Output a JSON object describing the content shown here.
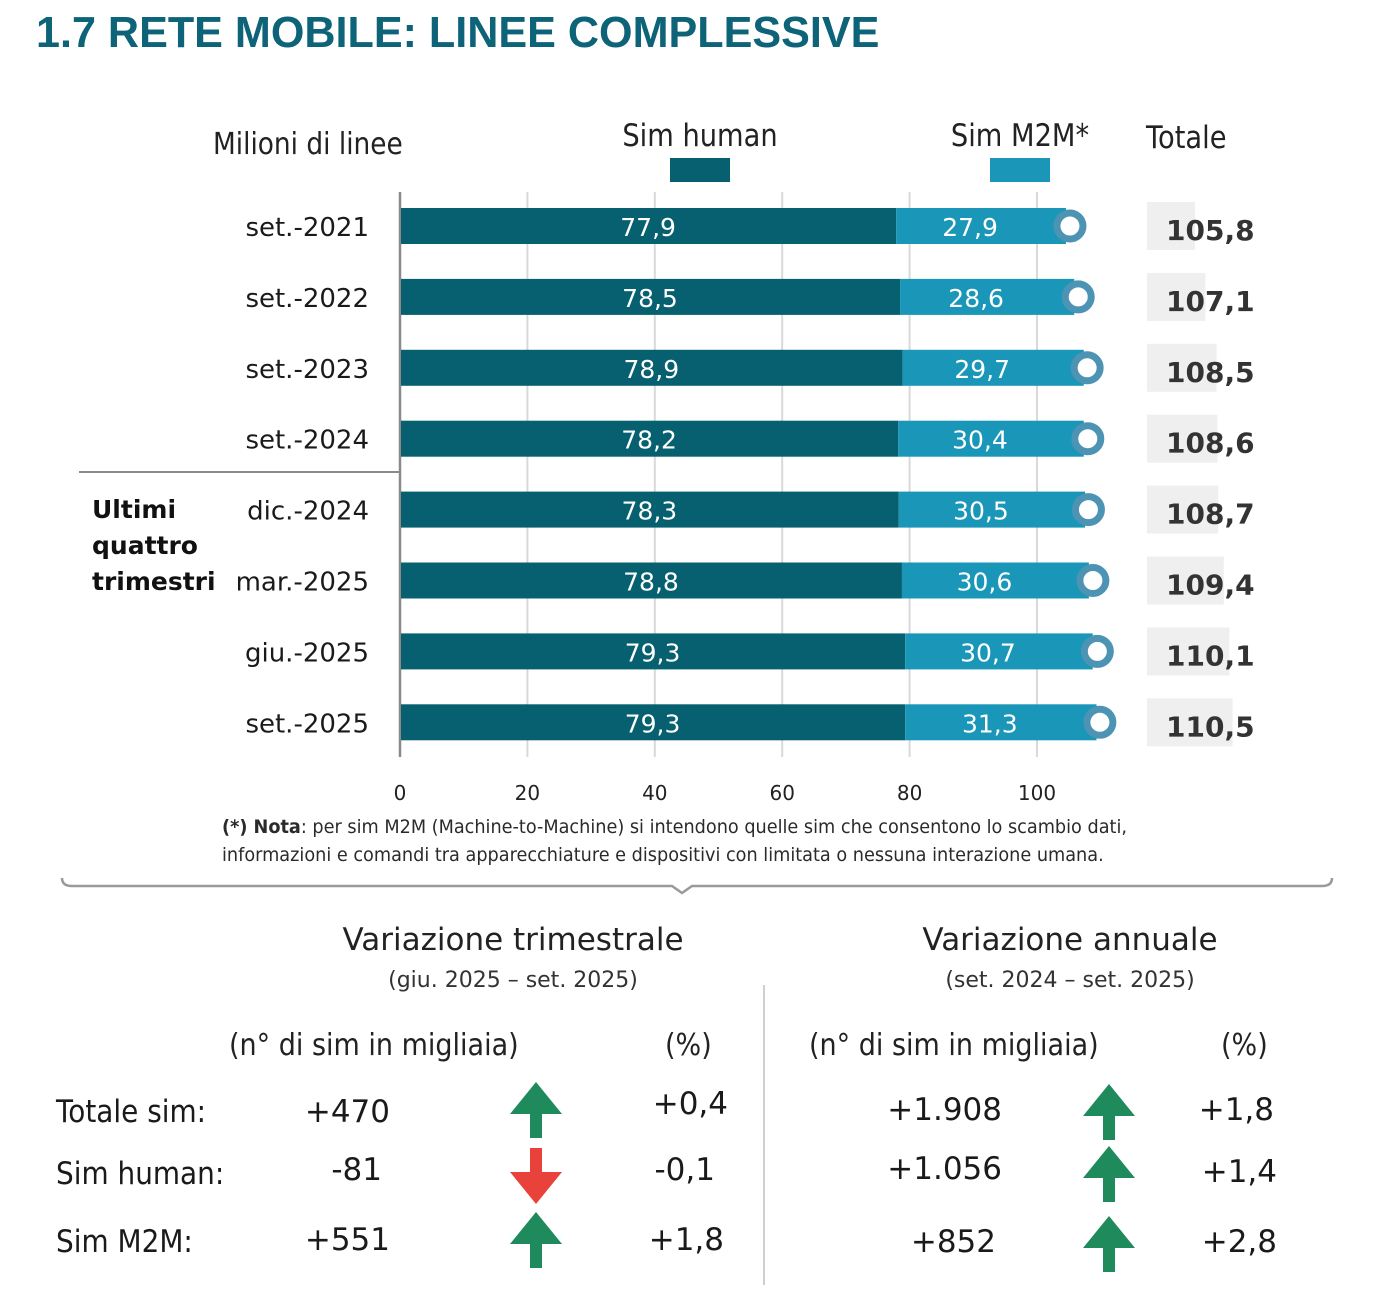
{
  "title": "1.7 RETE MOBILE: LINEE COMPLESSIVE",
  "colors": {
    "title": "#0d6378",
    "sim_human": "#06606f",
    "sim_m2m": "#1a97b8",
    "end_marker": "#4c93b4",
    "total_bg": "#efefef",
    "arrow_up": "#1f8a5b",
    "arrow_down": "#e8423a"
  },
  "chart_data": {
    "type": "bar",
    "stacked": true,
    "orientation": "horizontal",
    "title": "1.7 RETE MOBILE: LINEE COMPLESSIVE",
    "ylabel": "Milioni di linee",
    "xlabel": "",
    "xlim": [
      0,
      110
    ],
    "xticks": [
      0,
      20,
      40,
      60,
      80,
      100
    ],
    "grid": true,
    "legend": {
      "placement": "top",
      "entries": [
        "Sim human",
        "Sim M2M*"
      ]
    },
    "totals_header": "Totale",
    "categories": [
      "set.-2021",
      "set.-2022",
      "set.-2023",
      "set.-2024",
      "dic.-2024",
      "mar.-2025",
      "giu.-2025",
      "set.-2025"
    ],
    "series": [
      {
        "name": "Sim human",
        "values": [
          77.9,
          78.5,
          78.9,
          78.2,
          78.3,
          78.8,
          79.3,
          79.3
        ],
        "labels": [
          "77,9",
          "78,5",
          "78,9",
          "78,2",
          "78,3",
          "78,8",
          "79,3",
          "79,3"
        ]
      },
      {
        "name": "Sim M2M*",
        "values": [
          27.9,
          28.6,
          29.7,
          30.4,
          30.5,
          30.6,
          30.7,
          31.3
        ],
        "labels": [
          "27,9",
          "28,6",
          "29,7",
          "30,4",
          "30,5",
          "30,6",
          "30,7",
          "31,3"
        ]
      }
    ],
    "totals": [
      105.8,
      107.1,
      108.5,
      108.6,
      108.7,
      109.4,
      110.1,
      110.5
    ],
    "total_labels": [
      "105,8",
      "107,1",
      "108,5",
      "108,6",
      "108,7",
      "109,4",
      "110,1",
      "110,5"
    ],
    "group_annotation": {
      "text_lines": [
        "Ultimi",
        "quattro",
        "trimestri"
      ],
      "applies_to": [
        "dic.-2024",
        "mar.-2025",
        "giu.-2025",
        "set.-2025"
      ]
    }
  },
  "legend": {
    "human_label": "Sim human",
    "m2m_label": "Sim M2M*",
    "total_label": "Totale",
    "unit_label": "Milioni di linee"
  },
  "note": {
    "prefix": "(*) Nota",
    "line1": ": per sim M2M (Machine-to-Machine) si intendono quelle sim che consentono lo scambio dati,",
    "line2": "informazioni e comandi tra apparecchiature e dispositivi con limitata o nessuna interazione umana."
  },
  "variations": {
    "quarterly": {
      "title": "Variazione trimestrale",
      "period": "(giu. 2025 – set. 2025)",
      "col_abs": "(n° di sim in migliaia)",
      "col_pct": "(%)",
      "rows": [
        {
          "label": "Totale sim:",
          "abs": "+470",
          "pct": "+0,4",
          "direction": "up"
        },
        {
          "label": "Sim human:",
          "abs": "-81",
          "pct": "-0,1",
          "direction": "down"
        },
        {
          "label": "Sim M2M:",
          "abs": "+551",
          "pct": "+1,8",
          "direction": "up"
        }
      ]
    },
    "annual": {
      "title": "Variazione annuale",
      "period": "(set. 2024 – set. 2025)",
      "col_abs": "(n° di sim in migliaia)",
      "col_pct": "(%)",
      "rows": [
        {
          "abs": "+1.908",
          "pct": "+1,8",
          "direction": "up"
        },
        {
          "abs": "+1.056",
          "pct": "+1,4",
          "direction": "up"
        },
        {
          "abs": "+852",
          "pct": "+2,8",
          "direction": "up"
        }
      ]
    }
  }
}
